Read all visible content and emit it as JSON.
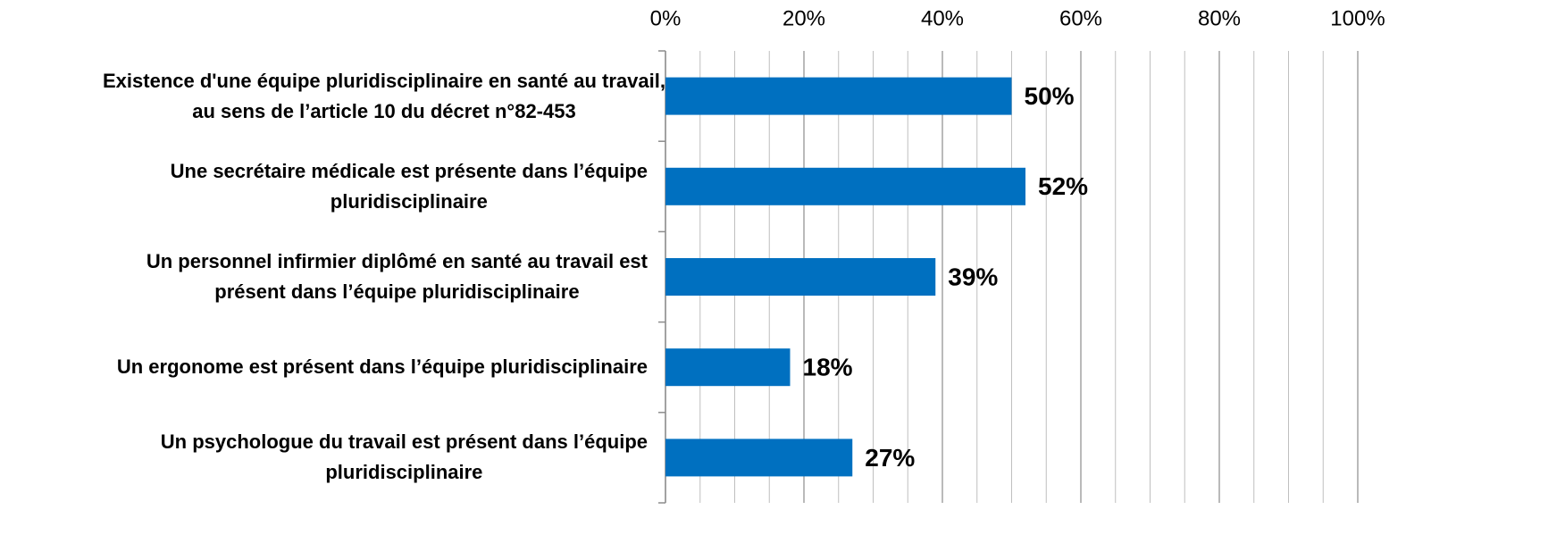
{
  "chart_data": {
    "type": "bar",
    "orientation": "horizontal",
    "categories": [
      "Existence d'une équipe pluridisciplinaire en santé au travail,\nau sens de l’article 10 du décret n°82-453",
      "Une secrétaire médicale est présente dans l’équipe\npluridisciplinaire",
      "Un personnel infirmier diplômé en santé au travail est\nprésent dans l’équipe pluridisciplinaire",
      "Un ergonome est présent dans l’équipe pluridisciplinaire",
      "Un psychologue du travail est présent dans l’équipe\npluridisciplinaire"
    ],
    "values": [
      50,
      52,
      39,
      18,
      27
    ],
    "value_labels": [
      "50%",
      "52%",
      "39%",
      "18%",
      "27%"
    ],
    "color": "#0070c0",
    "xlim": [
      0,
      100
    ],
    "xticks": [
      {
        "value": 0,
        "label": "0%"
      },
      {
        "value": 20,
        "label": "20%"
      },
      {
        "value": 40,
        "label": "40%"
      },
      {
        "value": 60,
        "label": "60%"
      },
      {
        "value": 80,
        "label": "80%"
      },
      {
        "value": 100,
        "label": "100%"
      }
    ],
    "minor_xticks": [
      5,
      10,
      15,
      25,
      30,
      35,
      45,
      50,
      55,
      65,
      70,
      75,
      85,
      90,
      95
    ],
    "grid": true
  }
}
